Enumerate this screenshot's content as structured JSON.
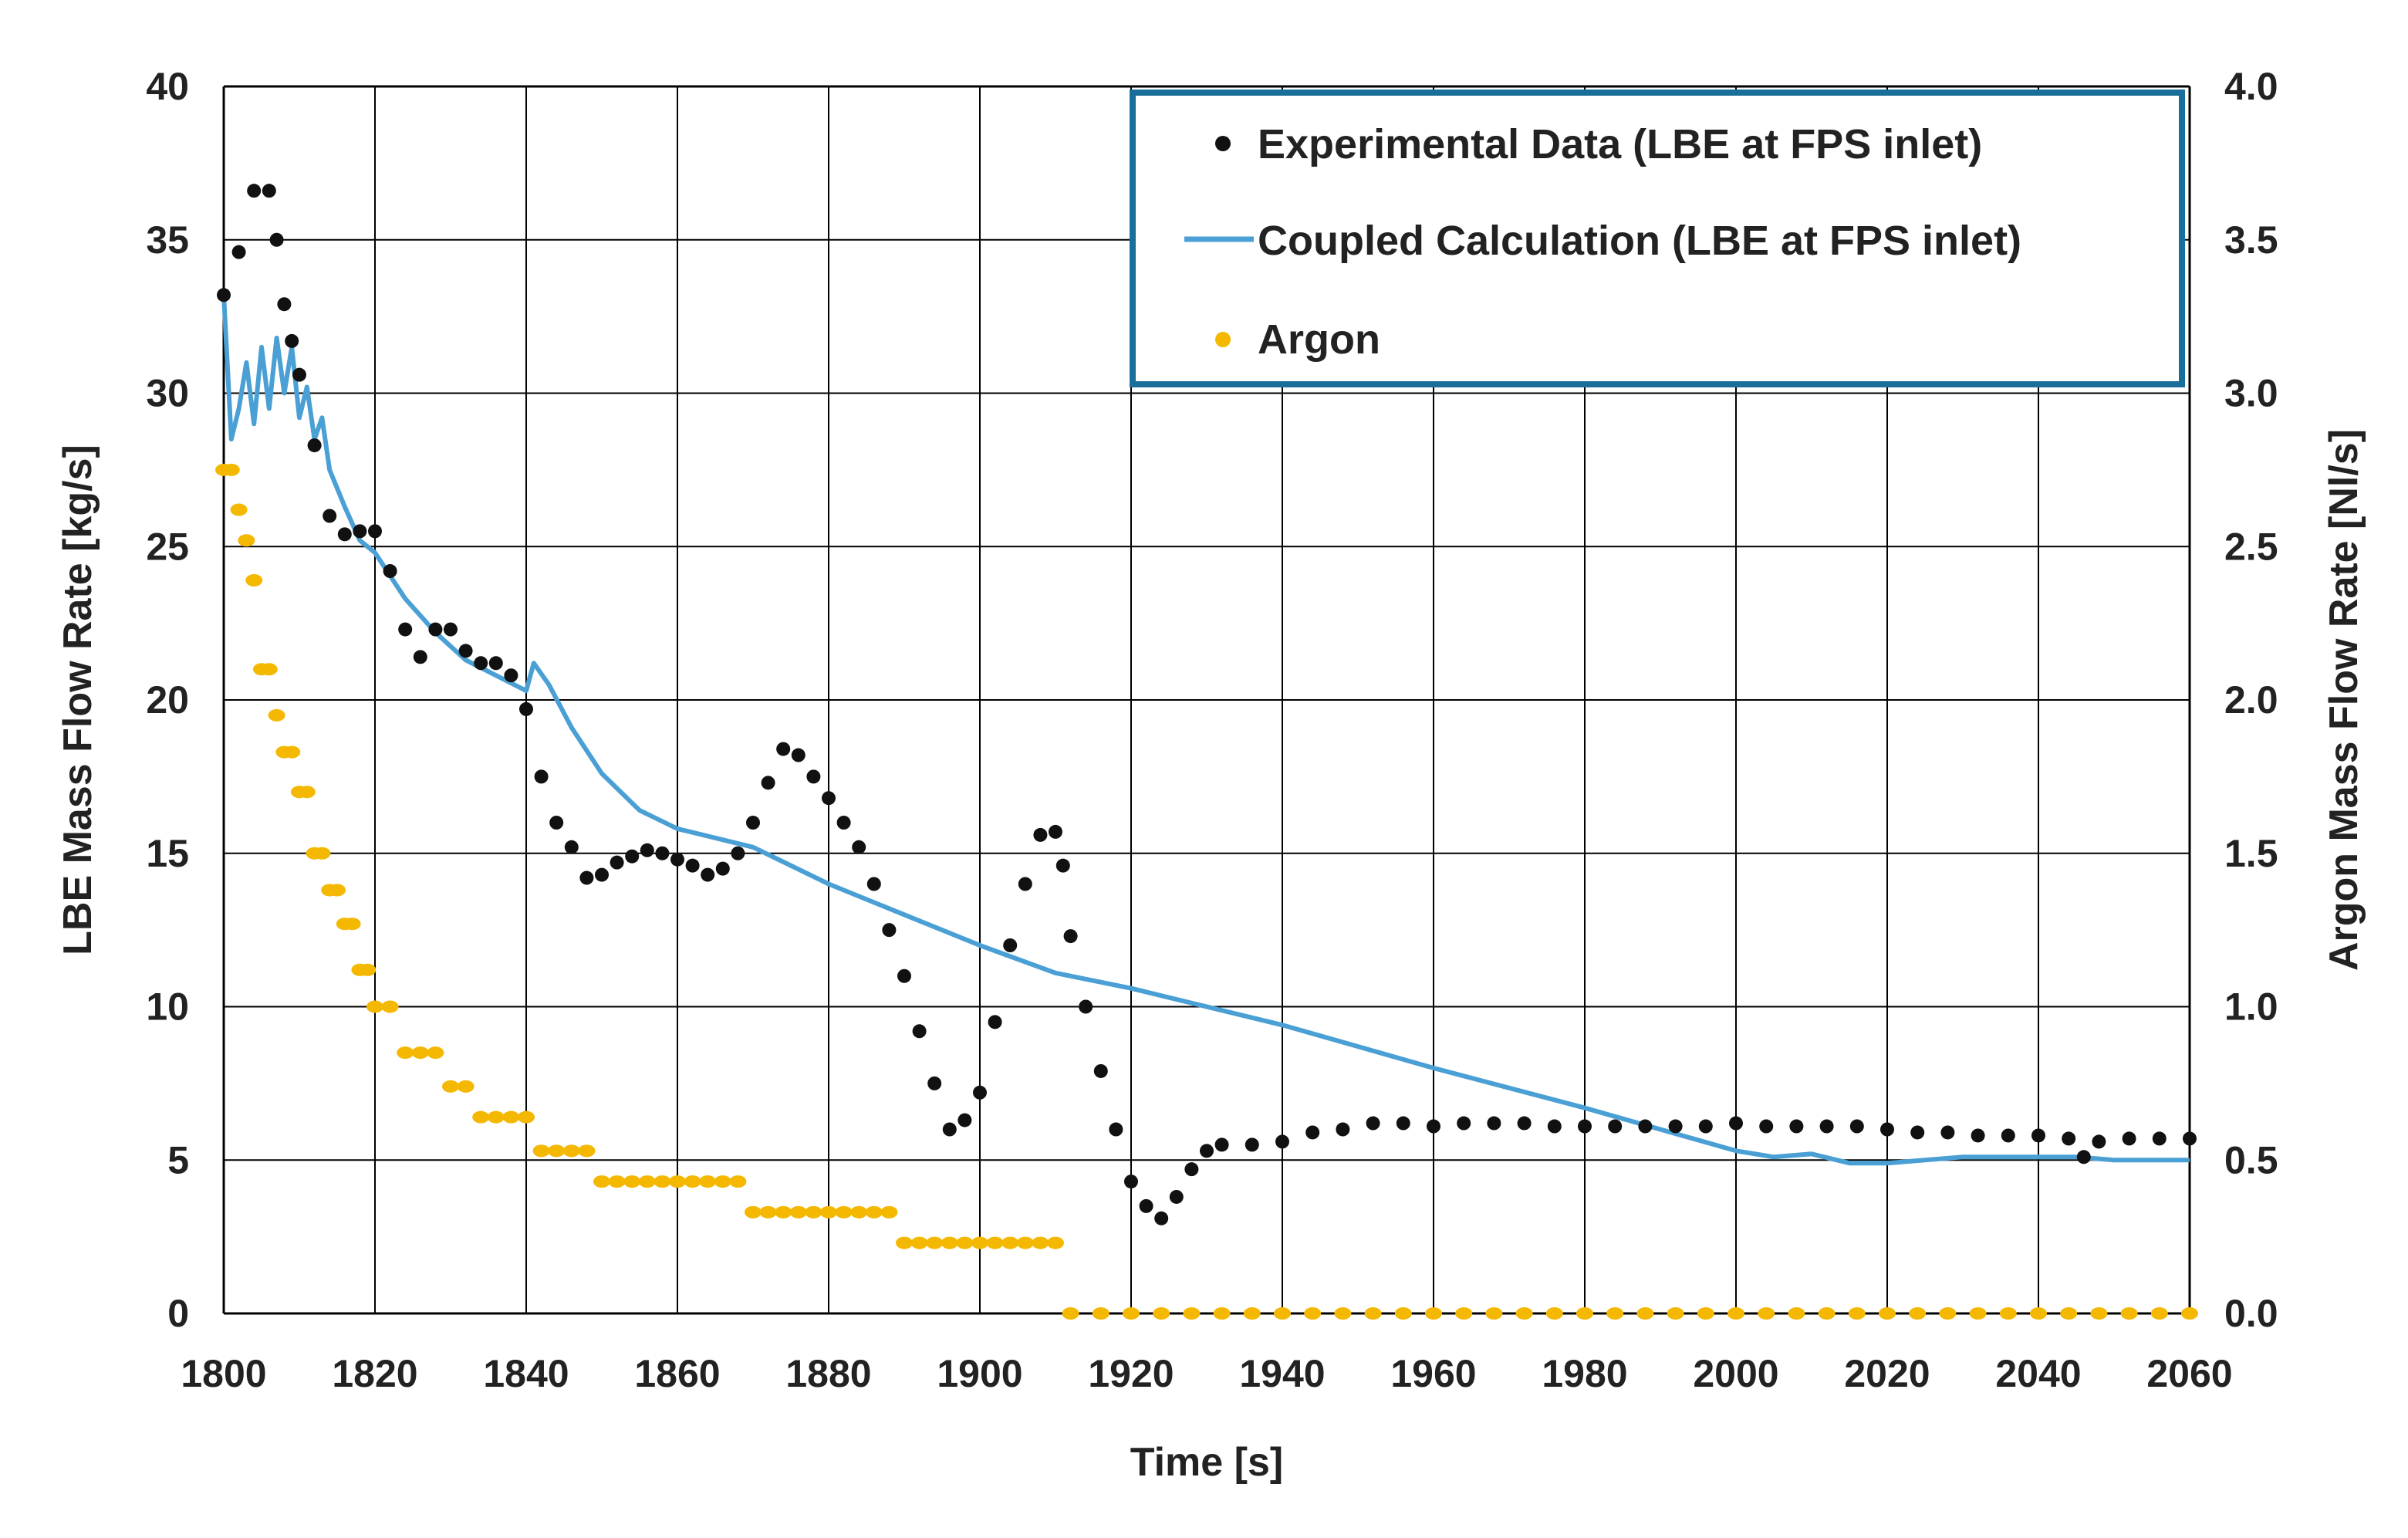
{
  "chart_data": {
    "type": "scatter",
    "xlabel": "Time [s]",
    "ylabel": "LBE Mass Flow Rate [kg/s]",
    "y2label": "Argon Mass Flow Rate [Nl/s]",
    "xlim": [
      1800,
      2060
    ],
    "ylim": [
      0,
      40
    ],
    "y2lim": [
      0.0,
      4.0
    ],
    "x_ticks": [
      "1800",
      "1820",
      "1840",
      "1860",
      "1880",
      "1900",
      "1920",
      "1940",
      "1960",
      "1980",
      "2000",
      "2020",
      "2040",
      "2060"
    ],
    "y_ticks": [
      "0",
      "5",
      "10",
      "15",
      "20",
      "25",
      "30",
      "35",
      "40"
    ],
    "y2_ticks": [
      "0.0",
      "0.5",
      "1.0",
      "1.5",
      "2.0",
      "2.5",
      "3.0",
      "3.5",
      "4.0"
    ],
    "grid": true,
    "legend_position": "top-right",
    "series": [
      {
        "name": "Experimental Data (LBE at FPS inlet)",
        "style": "dots",
        "color": "#111111",
        "axis": "left",
        "points": [
          [
            1800,
            33.2
          ],
          [
            1802,
            34.6
          ],
          [
            1804,
            36.6
          ],
          [
            1806,
            36.6
          ],
          [
            1807,
            35
          ],
          [
            1808,
            32.9
          ],
          [
            1809,
            31.7
          ],
          [
            1810,
            30.6
          ],
          [
            1812,
            28.3
          ],
          [
            1814,
            26
          ],
          [
            1816,
            25.4
          ],
          [
            1818,
            25.5
          ],
          [
            1820,
            25.5
          ],
          [
            1822,
            24.2
          ],
          [
            1824,
            22.3
          ],
          [
            1826,
            21.4
          ],
          [
            1828,
            22.3
          ],
          [
            1830,
            22.3
          ],
          [
            1832,
            21.6
          ],
          [
            1834,
            21.2
          ],
          [
            1836,
            21.2
          ],
          [
            1838,
            20.8
          ],
          [
            1840,
            19.7
          ],
          [
            1842,
            17.5
          ],
          [
            1844,
            16
          ],
          [
            1846,
            15.2
          ],
          [
            1848,
            14.2
          ],
          [
            1850,
            14.3
          ],
          [
            1852,
            14.7
          ],
          [
            1854,
            14.9
          ],
          [
            1856,
            15.1
          ],
          [
            1858,
            15
          ],
          [
            1860,
            14.8
          ],
          [
            1862,
            14.6
          ],
          [
            1864,
            14.3
          ],
          [
            1866,
            14.5
          ],
          [
            1868,
            15
          ],
          [
            1870,
            16
          ],
          [
            1872,
            17.3
          ],
          [
            1874,
            18.4
          ],
          [
            1876,
            18.2
          ],
          [
            1878,
            17.5
          ],
          [
            1880,
            16.8
          ],
          [
            1882,
            16
          ],
          [
            1884,
            15.2
          ],
          [
            1886,
            14
          ],
          [
            1888,
            12.5
          ],
          [
            1890,
            11
          ],
          [
            1892,
            9.2
          ],
          [
            1894,
            7.5
          ],
          [
            1896,
            6
          ],
          [
            1898,
            6.3
          ],
          [
            1900,
            7.2
          ],
          [
            1902,
            9.5
          ],
          [
            1904,
            12
          ],
          [
            1906,
            14
          ],
          [
            1908,
            15.6
          ],
          [
            1910,
            15.7
          ],
          [
            1911,
            14.6
          ],
          [
            1912,
            12.3
          ],
          [
            1914,
            10
          ],
          [
            1916,
            7.9
          ],
          [
            1918,
            6
          ],
          [
            1920,
            4.3
          ],
          [
            1922,
            3.5
          ],
          [
            1924,
            3.1
          ],
          [
            1926,
            3.8
          ],
          [
            1928,
            4.7
          ],
          [
            1930,
            5.3
          ],
          [
            1932,
            5.5
          ],
          [
            1936,
            5.5
          ],
          [
            1940,
            5.6
          ],
          [
            1944,
            5.9
          ],
          [
            1948,
            6
          ],
          [
            1952,
            6.2
          ],
          [
            1956,
            6.2
          ],
          [
            1960,
            6.1
          ],
          [
            1964,
            6.2
          ],
          [
            1968,
            6.2
          ],
          [
            1972,
            6.2
          ],
          [
            1976,
            6.1
          ],
          [
            1980,
            6.1
          ],
          [
            1984,
            6.1
          ],
          [
            1988,
            6.1
          ],
          [
            1992,
            6.1
          ],
          [
            1996,
            6.1
          ],
          [
            2000,
            6.2
          ],
          [
            2004,
            6.1
          ],
          [
            2008,
            6.1
          ],
          [
            2012,
            6.1
          ],
          [
            2016,
            6.1
          ],
          [
            2020,
            6
          ],
          [
            2024,
            5.9
          ],
          [
            2028,
            5.9
          ],
          [
            2032,
            5.8
          ],
          [
            2036,
            5.8
          ],
          [
            2040,
            5.8
          ],
          [
            2044,
            5.7
          ],
          [
            2046,
            5.1
          ],
          [
            2048,
            5.6
          ],
          [
            2052,
            5.7
          ],
          [
            2056,
            5.7
          ],
          [
            2060,
            5.7
          ]
        ]
      },
      {
        "name": "Coupled Calculation (LBE at FPS inlet)",
        "style": "line",
        "color": "#4aa0d5",
        "axis": "left",
        "points": [
          [
            1800,
            33.2
          ],
          [
            1801,
            28.5
          ],
          [
            1802,
            29.5
          ],
          [
            1803,
            31
          ],
          [
            1804,
            29
          ],
          [
            1805,
            31.5
          ],
          [
            1806,
            29.5
          ],
          [
            1807,
            31.8
          ],
          [
            1808,
            30
          ],
          [
            1809,
            31.5
          ],
          [
            1810,
            29.2
          ],
          [
            1811,
            30.2
          ],
          [
            1812,
            28.5
          ],
          [
            1813,
            29.2
          ],
          [
            1814,
            27.5
          ],
          [
            1816,
            26.3
          ],
          [
            1818,
            25.2
          ],
          [
            1820,
            24.8
          ],
          [
            1824,
            23.3
          ],
          [
            1828,
            22.2
          ],
          [
            1832,
            21.3
          ],
          [
            1836,
            20.8
          ],
          [
            1840,
            20.3
          ],
          [
            1841,
            21.2
          ],
          [
            1843,
            20.5
          ],
          [
            1846,
            19.1
          ],
          [
            1850,
            17.6
          ],
          [
            1855,
            16.4
          ],
          [
            1860,
            15.8
          ],
          [
            1870,
            15.2
          ],
          [
            1880,
            14
          ],
          [
            1890,
            13
          ],
          [
            1900,
            12
          ],
          [
            1910,
            11.1
          ],
          [
            1920,
            10.6
          ],
          [
            1940,
            9.4
          ],
          [
            1960,
            8
          ],
          [
            1980,
            6.7
          ],
          [
            1990,
            6
          ],
          [
            2000,
            5.3
          ],
          [
            2005,
            5.1
          ],
          [
            2010,
            5.2
          ],
          [
            2015,
            4.9
          ],
          [
            2020,
            4.9
          ],
          [
            2030,
            5.1
          ],
          [
            2040,
            5.1
          ],
          [
            2045,
            5.1
          ],
          [
            2050,
            5
          ],
          [
            2060,
            5
          ]
        ]
      },
      {
        "name": "Argon",
        "style": "dots",
        "color": "#f5b800",
        "axis": "right",
        "points": [
          [
            1800,
            2.75
          ],
          [
            1801,
            2.75
          ],
          [
            1802,
            2.62
          ],
          [
            1803,
            2.52
          ],
          [
            1804,
            2.39
          ],
          [
            1805,
            2.1
          ],
          [
            1806,
            2.1
          ],
          [
            1807,
            1.95
          ],
          [
            1808,
            1.83
          ],
          [
            1809,
            1.83
          ],
          [
            1810,
            1.7
          ],
          [
            1811,
            1.7
          ],
          [
            1812,
            1.5
          ],
          [
            1813,
            1.5
          ],
          [
            1814,
            1.38
          ],
          [
            1815,
            1.38
          ],
          [
            1816,
            1.27
          ],
          [
            1817,
            1.27
          ],
          [
            1818,
            1.12
          ],
          [
            1819,
            1.12
          ],
          [
            1820,
            1.0
          ],
          [
            1822,
            1.0
          ],
          [
            1824,
            0.85
          ],
          [
            1826,
            0.85
          ],
          [
            1828,
            0.85
          ],
          [
            1830,
            0.74
          ],
          [
            1832,
            0.74
          ],
          [
            1834,
            0.64
          ],
          [
            1836,
            0.64
          ],
          [
            1838,
            0.64
          ],
          [
            1840,
            0.64
          ],
          [
            1842,
            0.53
          ],
          [
            1844,
            0.53
          ],
          [
            1846,
            0.53
          ],
          [
            1848,
            0.53
          ],
          [
            1850,
            0.43
          ],
          [
            1852,
            0.43
          ],
          [
            1854,
            0.43
          ],
          [
            1856,
            0.43
          ],
          [
            1858,
            0.43
          ],
          [
            1860,
            0.43
          ],
          [
            1862,
            0.43
          ],
          [
            1864,
            0.43
          ],
          [
            1866,
            0.43
          ],
          [
            1868,
            0.43
          ],
          [
            1870,
            0.33
          ],
          [
            1872,
            0.33
          ],
          [
            1874,
            0.33
          ],
          [
            1876,
            0.33
          ],
          [
            1878,
            0.33
          ],
          [
            1880,
            0.33
          ],
          [
            1882,
            0.33
          ],
          [
            1884,
            0.33
          ],
          [
            1886,
            0.33
          ],
          [
            1888,
            0.33
          ],
          [
            1890,
            0.23
          ],
          [
            1892,
            0.23
          ],
          [
            1894,
            0.23
          ],
          [
            1896,
            0.23
          ],
          [
            1898,
            0.23
          ],
          [
            1900,
            0.23
          ],
          [
            1902,
            0.23
          ],
          [
            1904,
            0.23
          ],
          [
            1906,
            0.23
          ],
          [
            1908,
            0.23
          ],
          [
            1910,
            0.23
          ],
          [
            1912,
            0.0
          ],
          [
            1916,
            0.0
          ],
          [
            1920,
            0.0
          ],
          [
            1924,
            0.0
          ],
          [
            1928,
            0.0
          ],
          [
            1932,
            0.0
          ],
          [
            1936,
            0.0
          ],
          [
            1940,
            0.0
          ],
          [
            1944,
            0.0
          ],
          [
            1948,
            0.0
          ],
          [
            1952,
            0.0
          ],
          [
            1956,
            0.0
          ],
          [
            1960,
            0.0
          ],
          [
            1964,
            0.0
          ],
          [
            1968,
            0.0
          ],
          [
            1972,
            0.0
          ],
          [
            1976,
            0.0
          ],
          [
            1980,
            0.0
          ],
          [
            1984,
            0.0
          ],
          [
            1988,
            0.0
          ],
          [
            1992,
            0.0
          ],
          [
            1996,
            0.0
          ],
          [
            2000,
            0.0
          ],
          [
            2004,
            0.0
          ],
          [
            2008,
            0.0
          ],
          [
            2012,
            0.0
          ],
          [
            2016,
            0.0
          ],
          [
            2020,
            0.0
          ],
          [
            2024,
            0.0
          ],
          [
            2028,
            0.0
          ],
          [
            2032,
            0.0
          ],
          [
            2036,
            0.0
          ],
          [
            2040,
            0.0
          ],
          [
            2044,
            0.0
          ],
          [
            2048,
            0.0
          ],
          [
            2052,
            0.0
          ],
          [
            2056,
            0.0
          ],
          [
            2060,
            0.0
          ]
        ]
      }
    ]
  },
  "colors": {
    "grid": "#000000",
    "legend_border": "#1a6f9a"
  }
}
